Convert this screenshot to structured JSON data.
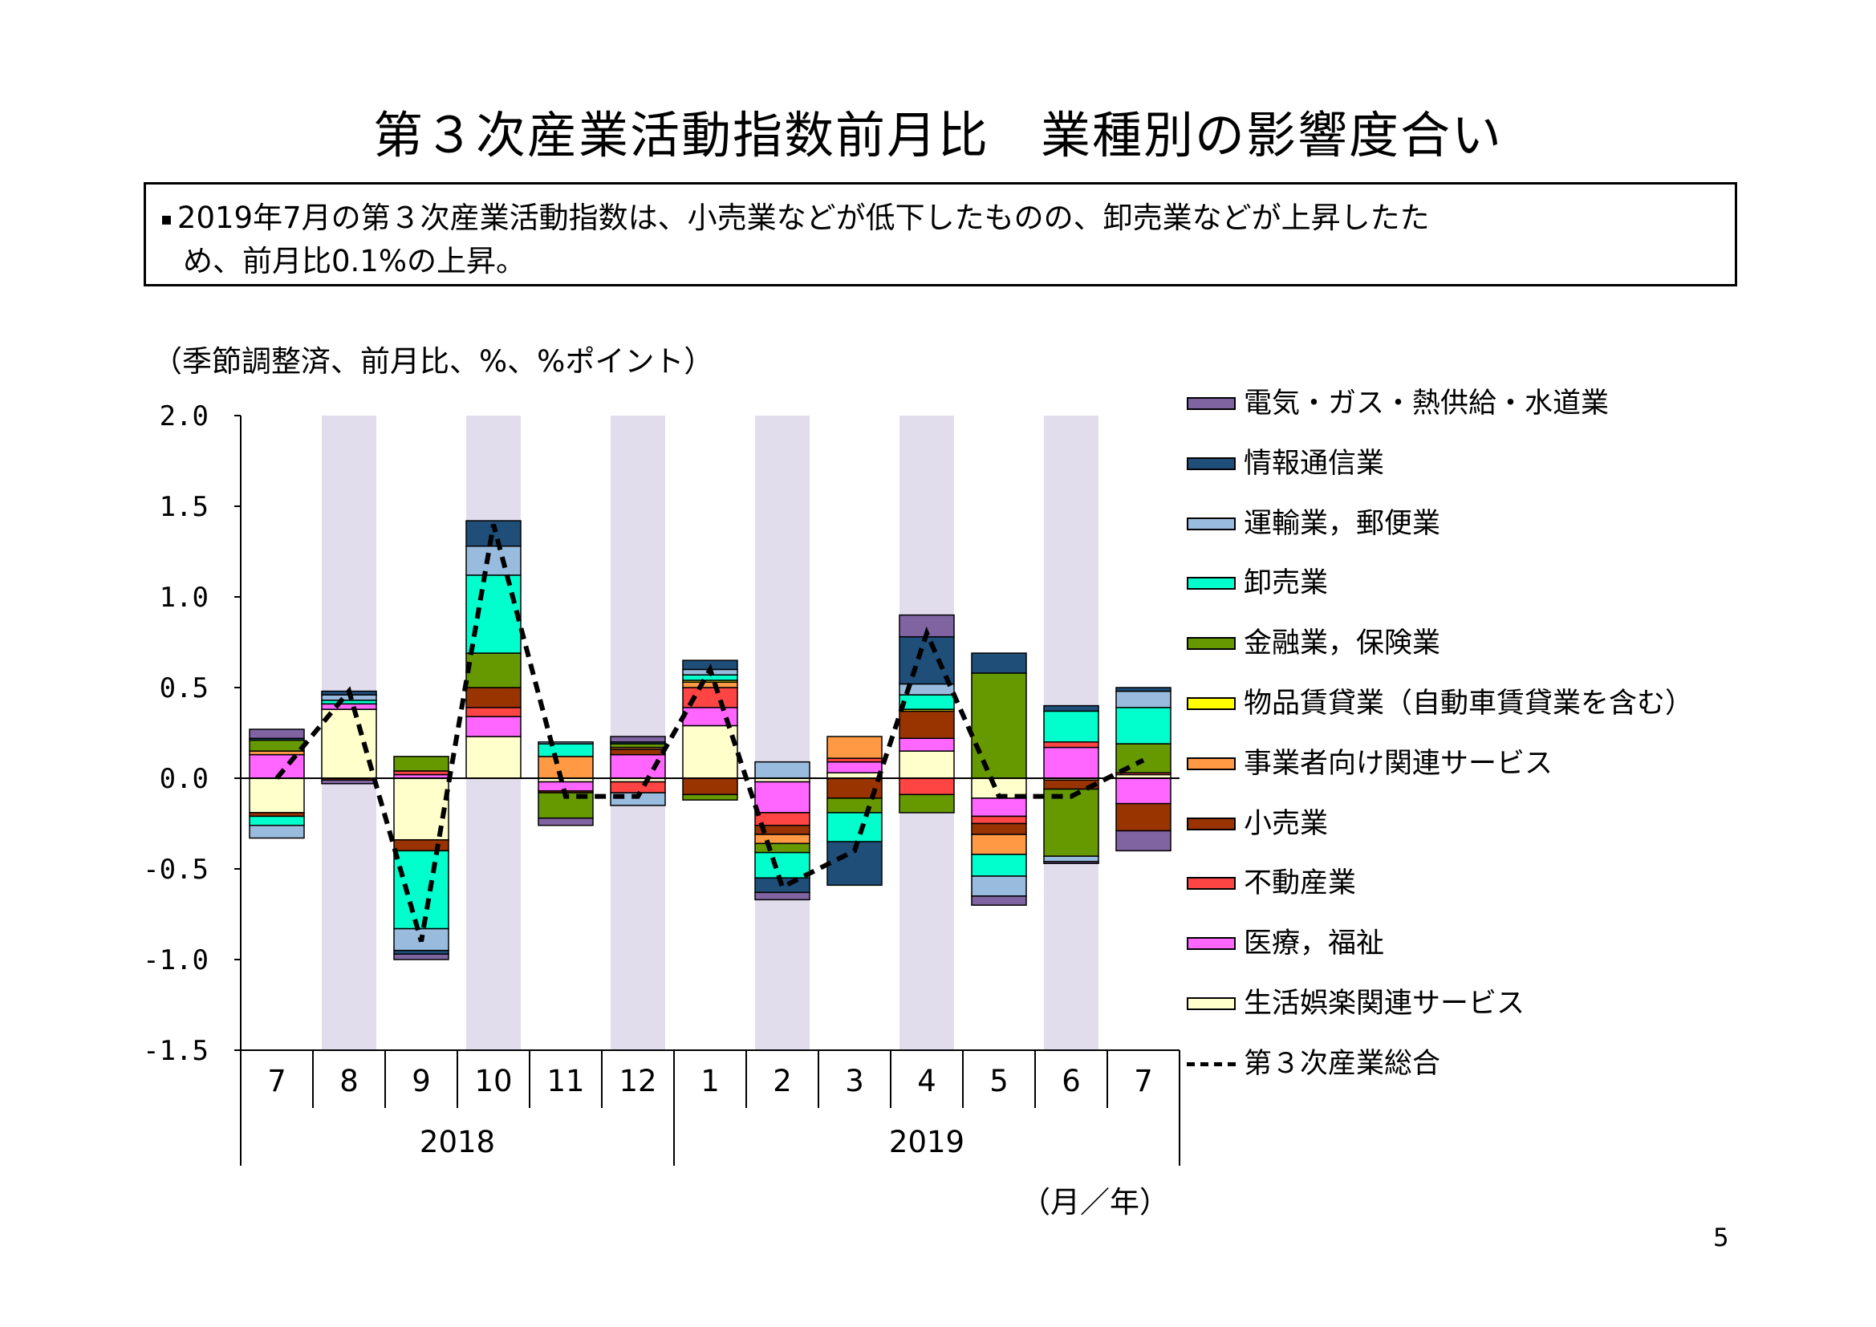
{
  "title": "第３次産業活動指数前月比　業種別の影響度合い",
  "summary": {
    "bullet": "▪",
    "line1": "2019年7月の第３次産業活動指数は、小売業などが低下したものの、卸売業などが上昇したた",
    "line2": "め、前月比0.1%の上昇。"
  },
  "unit_label": "（季節調整済、前月比、%、%ポイント）",
  "x_unit_label": "（月／年）",
  "page_number": "5",
  "chart_data": {
    "type": "bar",
    "stacked": true,
    "ylim": [
      -1.5,
      2.0
    ],
    "yticks": [
      "2.0",
      "1.5",
      "1.0",
      "0.5",
      "0.0",
      "-0.5",
      "-1.0",
      "-1.5"
    ],
    "ytick_values": [
      2.0,
      1.5,
      1.0,
      0.5,
      0.0,
      -0.5,
      -1.0,
      -1.5
    ],
    "categories": [
      "7",
      "8",
      "9",
      "10",
      "11",
      "12",
      "1",
      "2",
      "3",
      "4",
      "5",
      "6",
      "7"
    ],
    "years": [
      {
        "label": "2018",
        "start": 0,
        "end": 5
      },
      {
        "label": "2019",
        "start": 6,
        "end": 12
      }
    ],
    "shaded_categories": [
      1,
      3,
      5,
      7,
      9,
      11
    ],
    "shade_color": "#e2dded",
    "series": [
      {
        "name": "生活娯楽関連サービス",
        "color": "#ffffcc",
        "values": [
          -0.19,
          0.38,
          -0.34,
          0.23,
          -0.02,
          -0.02,
          0.29,
          -0.02,
          0.03,
          0.15,
          -0.11,
          -0.01,
          0.02
        ]
      },
      {
        "name": "医療，福祉",
        "color": "#ff66ff",
        "values": [
          0.13,
          0.03,
          0.02,
          0.11,
          -0.05,
          0.13,
          0.1,
          -0.17,
          0.06,
          0.07,
          -0.1,
          0.17,
          -0.14
        ]
      },
      {
        "name": "不動産業",
        "color": "#ff4444",
        "values": [
          0.0,
          0.0,
          0.02,
          0.05,
          0.0,
          -0.06,
          0.11,
          -0.07,
          0.02,
          -0.09,
          -0.04,
          0.03,
          0.01
        ]
      },
      {
        "name": "小売業",
        "color": "#993300",
        "values": [
          -0.02,
          -0.01,
          -0.06,
          0.11,
          -0.01,
          0.03,
          -0.09,
          -0.05,
          -0.11,
          0.15,
          -0.06,
          -0.05,
          -0.15
        ]
      },
      {
        "name": "事業者向け関連サービス",
        "color": "#ff9944",
        "values": [
          0.02,
          0.0,
          0.0,
          0.0,
          0.12,
          0.01,
          0.03,
          -0.05,
          0.12,
          0.0,
          -0.11,
          0.0,
          0.0
        ]
      },
      {
        "name": "物品賃貸業（自動車賃貸業を含む）",
        "color": "#ffff00",
        "values": [
          0.0,
          0.0,
          0.0,
          0.0,
          0.0,
          0.0,
          0.01,
          0.0,
          0.0,
          0.01,
          0.0,
          0.0,
          0.0
        ]
      },
      {
        "name": "金融業，保険業",
        "color": "#669900",
        "values": [
          0.06,
          0.0,
          0.08,
          0.19,
          -0.14,
          0.02,
          -0.03,
          -0.05,
          -0.08,
          -0.1,
          0.58,
          -0.37,
          0.16
        ]
      },
      {
        "name": "卸売業",
        "color": "#00ffcc",
        "values": [
          -0.05,
          0.02,
          -0.43,
          0.43,
          0.07,
          0.0,
          0.03,
          -0.14,
          -0.16,
          0.08,
          -0.12,
          0.17,
          0.2
        ]
      },
      {
        "name": "運輸業，郵便業",
        "color": "#99bbdd",
        "values": [
          -0.07,
          0.03,
          -0.12,
          0.16,
          0.01,
          -0.07,
          0.03,
          0.09,
          0.0,
          0.06,
          -0.11,
          -0.03,
          0.09
        ]
      },
      {
        "name": "情報通信業",
        "color": "#1f4e79",
        "values": [
          0.01,
          0.02,
          -0.02,
          0.14,
          0.0,
          0.01,
          0.05,
          -0.08,
          -0.24,
          0.26,
          0.11,
          0.03,
          0.02
        ]
      },
      {
        "name": "電気・ガス・熱供給・水道業",
        "color": "#8064a2",
        "values": [
          0.05,
          -0.02,
          -0.03,
          0.0,
          -0.04,
          0.03,
          0.0,
          -0.04,
          0.0,
          0.12,
          -0.05,
          -0.01,
          -0.11
        ]
      }
    ],
    "line_series": {
      "name": "第３次産業総合",
      "style": "dashed",
      "color": "#000000",
      "values": [
        0.0,
        0.48,
        -0.9,
        1.4,
        -0.1,
        -0.1,
        0.6,
        -0.6,
        -0.4,
        0.8,
        -0.1,
        -0.1,
        0.1
      ]
    },
    "legend_placement": "right"
  }
}
